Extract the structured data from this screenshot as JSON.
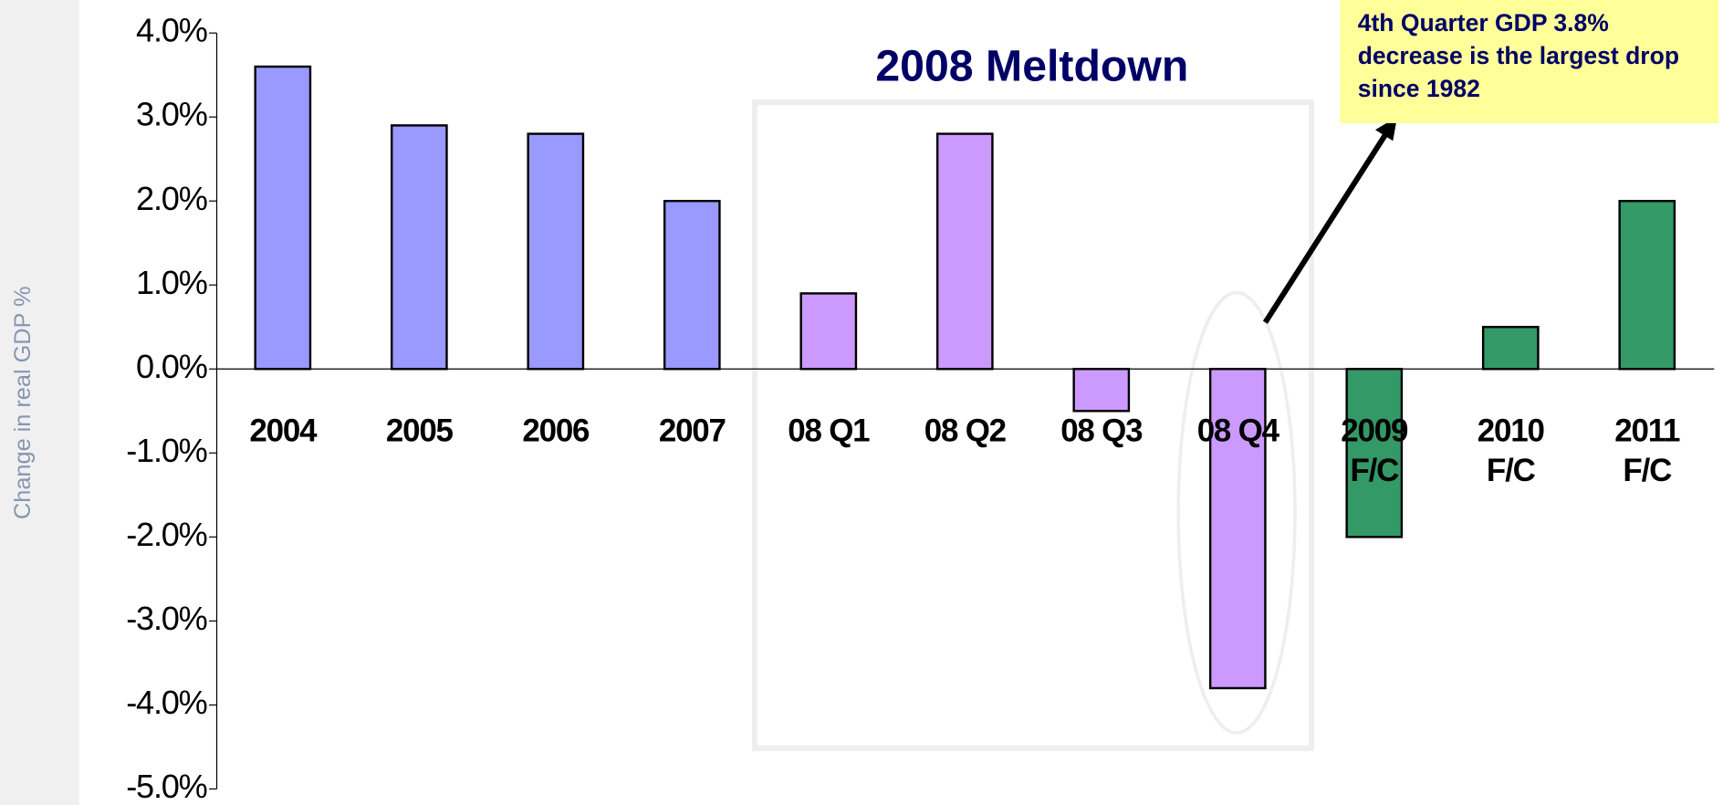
{
  "chart_data": {
    "type": "bar",
    "title": "2008 Meltdown",
    "y_axis_label": "Change in real GDP %",
    "annotation": "4th Quarter GDP 3.8% decrease is the largest drop since 1982",
    "categories": [
      "2004",
      "2005",
      "2006",
      "2007",
      "08 Q1",
      "08 Q2",
      "08 Q3",
      "08 Q4",
      "2009\nF/C",
      "2010\nF/C",
      "2011\nF/C"
    ],
    "values": [
      3.6,
      2.9,
      2.8,
      2.0,
      0.9,
      2.8,
      -0.5,
      -3.8,
      -2.0,
      0.5,
      2.0
    ],
    "colors": [
      "#9999ff",
      "#9999ff",
      "#9999ff",
      "#9999ff",
      "#cc99ff",
      "#cc99ff",
      "#cc99ff",
      "#cc99ff",
      "#339966",
      "#339966",
      "#339966"
    ],
    "ylim": [
      -5,
      4
    ],
    "yticks": [
      {
        "value": -5,
        "label": "-5.0%"
      },
      {
        "value": -4,
        "label": "-4.0%"
      },
      {
        "value": -3,
        "label": "-3.0%"
      },
      {
        "value": -2,
        "label": "-2.0%"
      },
      {
        "value": -1,
        "label": "-1.0%"
      },
      {
        "value": 0,
        "label": "0.0%"
      },
      {
        "value": 1,
        "label": "1.0%"
      },
      {
        "value": 2,
        "label": "2.0%"
      },
      {
        "value": 3,
        "label": "3.0%"
      },
      {
        "value": 4,
        "label": "4.0%"
      }
    ],
    "grid": false
  }
}
